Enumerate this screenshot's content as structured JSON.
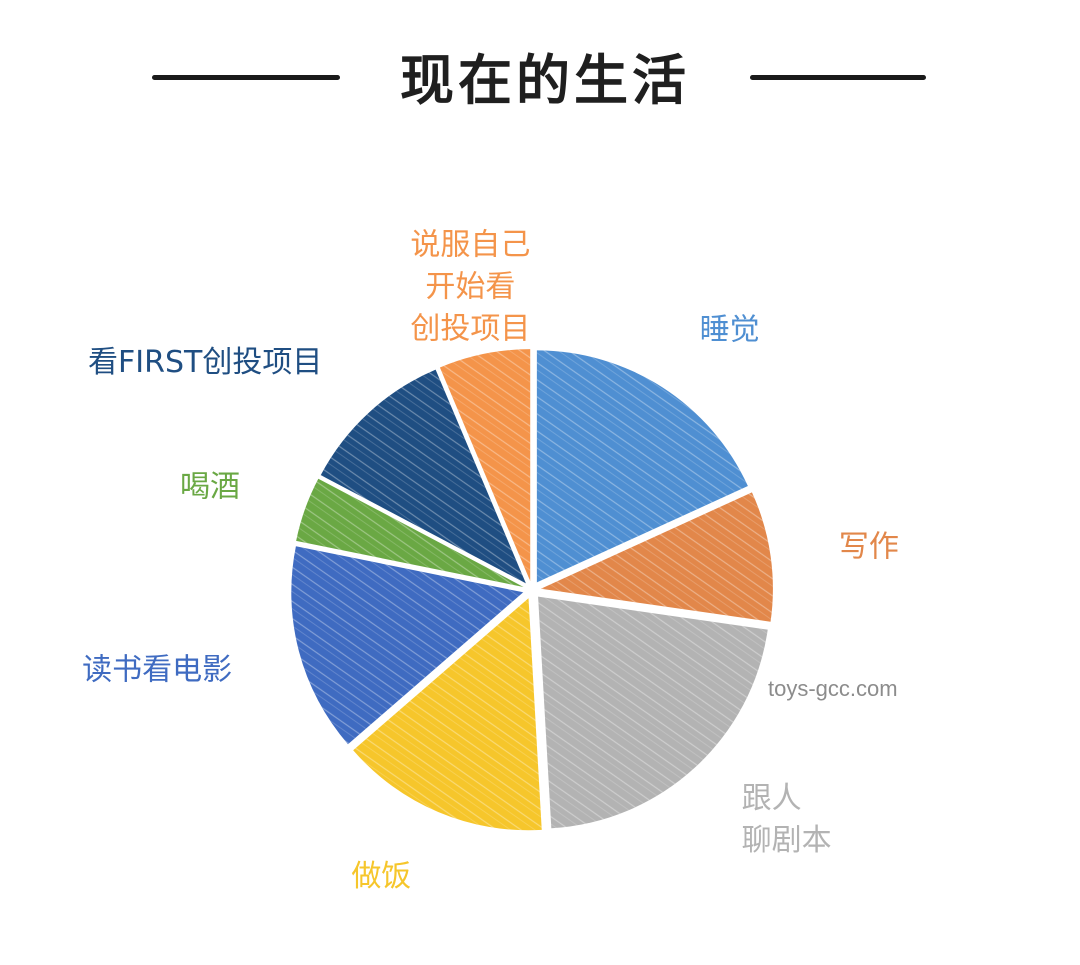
{
  "title": "现在的生活",
  "watermark": "toys-gcc.com",
  "chart_data": {
    "type": "pie",
    "title": "现在的生活",
    "start_angle_deg": -90,
    "direction": "clockwise",
    "slices": [
      {
        "label": [
          "睡觉"
        ],
        "value": 20,
        "color": "#4f8fd2"
      },
      {
        "label": [
          "写作"
        ],
        "value": 10,
        "color": "#e2874a"
      },
      {
        "label": [
          "跟人",
          "聊剧本"
        ],
        "value": 24,
        "color": "#b3b3b3"
      },
      {
        "label": [
          "做饭"
        ],
        "value": 16,
        "color": "#f6c62b"
      },
      {
        "label": [
          "读书看电影"
        ],
        "value": 16,
        "color": "#3f6bc1"
      },
      {
        "label": [
          "喝酒"
        ],
        "value": 5,
        "color": "#6aa844"
      },
      {
        "label": [
          "看FIRST创投项目"
        ],
        "value": 12,
        "color": "#1f4e82"
      },
      {
        "label": [
          "说服自己",
          "开始看",
          "创投项目"
        ],
        "value": 7,
        "color": "#f4944a"
      }
    ]
  }
}
